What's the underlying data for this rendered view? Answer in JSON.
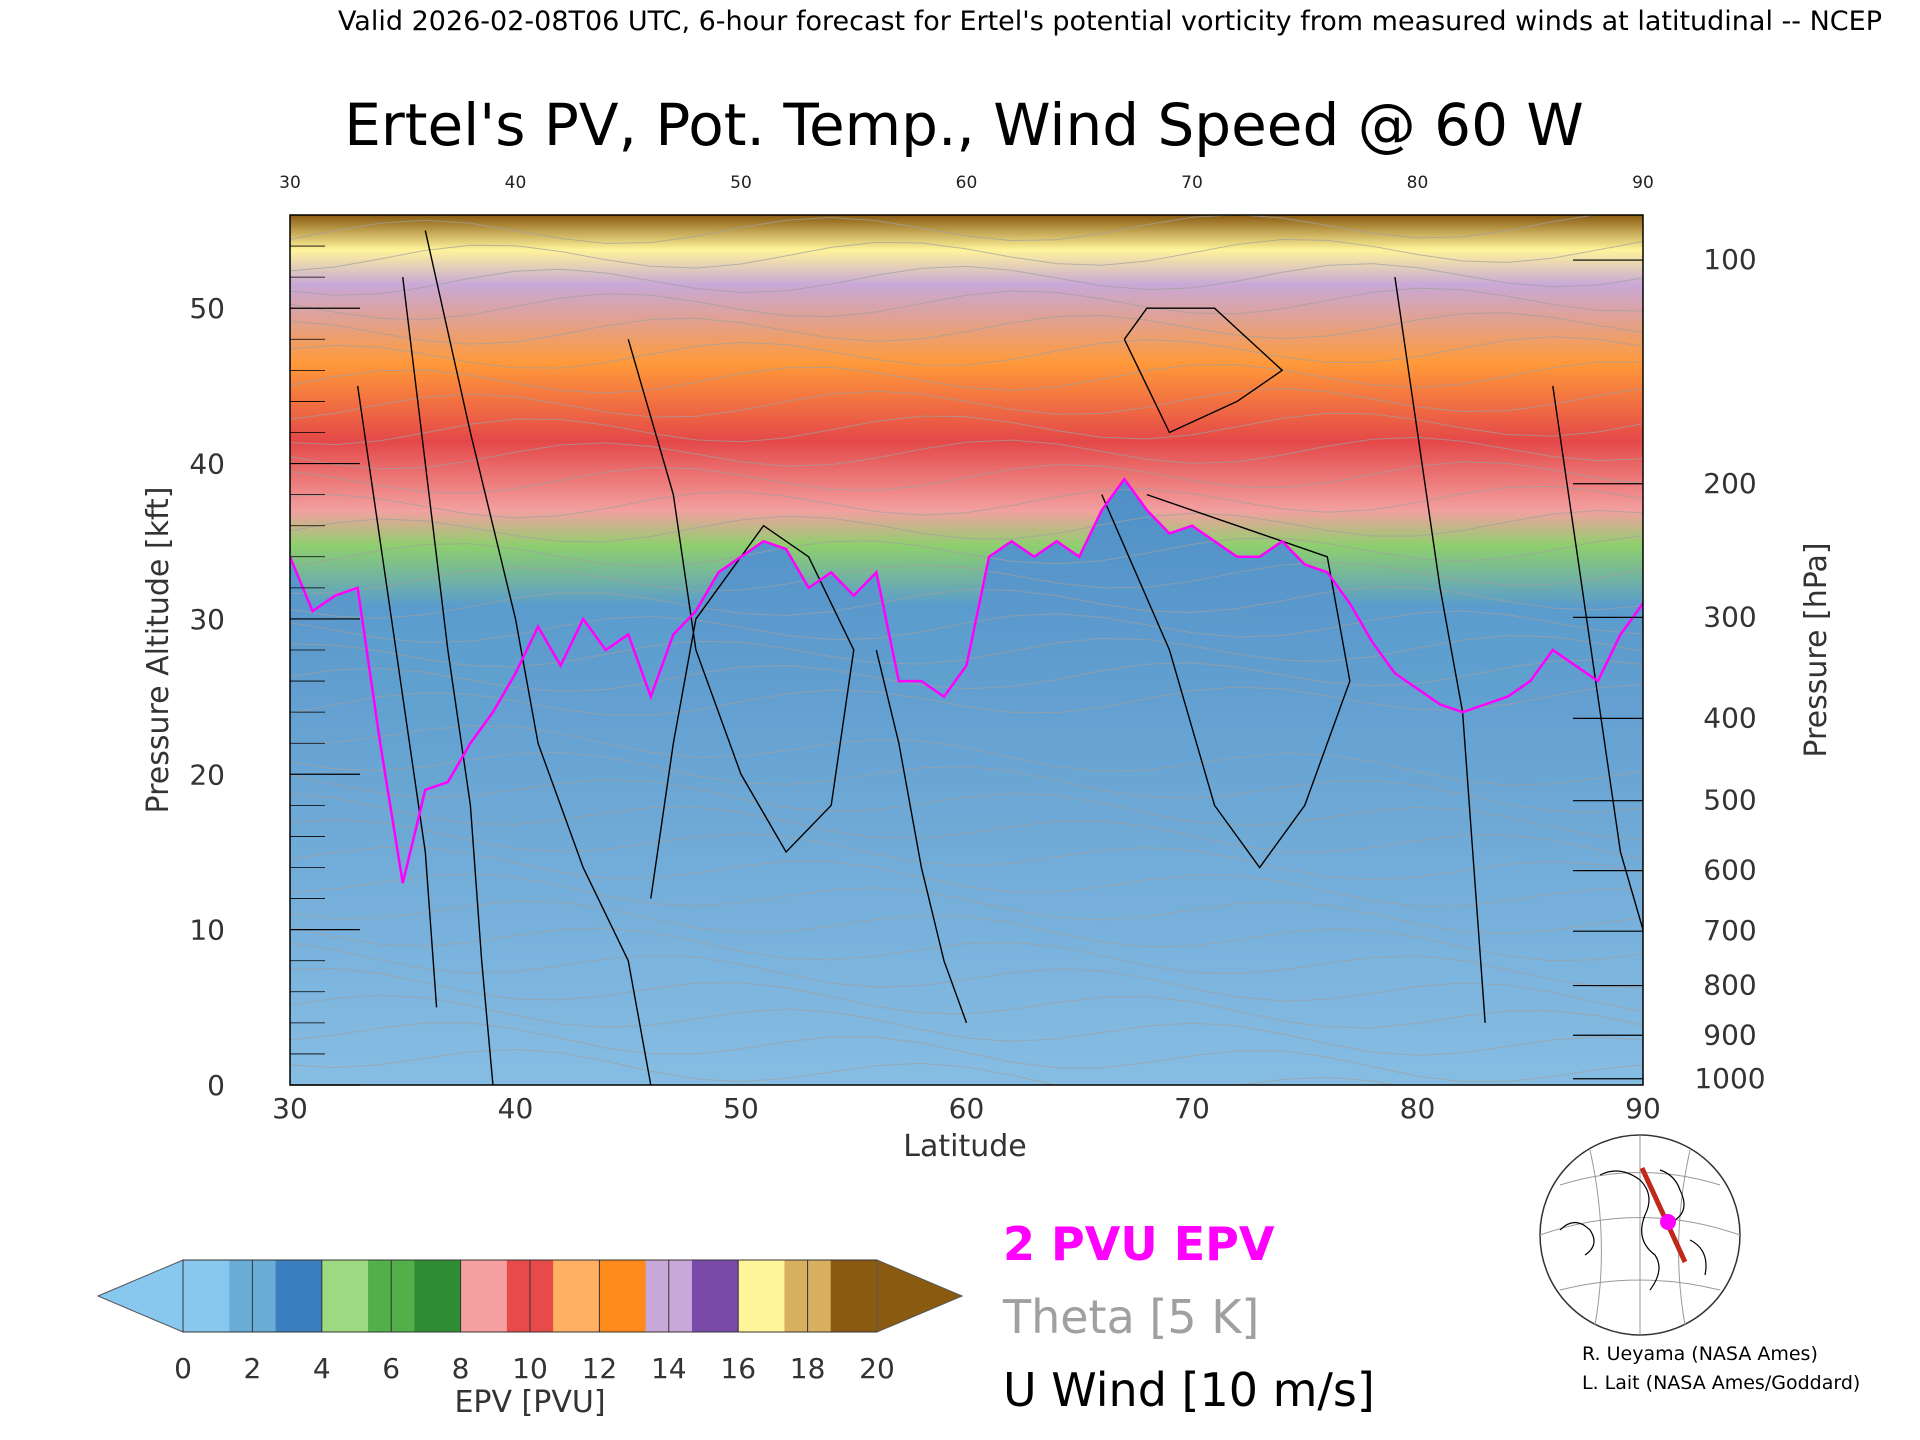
{
  "header": {
    "valid_line": "Valid 2026-02-08T06 UTC, 6-hour forecast for Ertel's potential vorticity from measured winds at latitudinal -- NCEP"
  },
  "chart_data": {
    "type": "heatmap",
    "title": "Ertel's PV, Pot. Temp., Wind Speed @ 60 W",
    "xlabel": "Latitude",
    "ylabel": "Pressure Altitude [kft]",
    "y2label": "Pressure [hPa]",
    "xlim": [
      30,
      90
    ],
    "ylim": [
      0,
      56
    ],
    "x_ticks": [
      "30",
      "40",
      "50",
      "60",
      "70",
      "80",
      "90"
    ],
    "y_ticks": [
      "0",
      "10",
      "20",
      "30",
      "40",
      "50"
    ],
    "pressure_ticks": [
      {
        "label": "100",
        "kft": 53.1
      },
      {
        "label": "200",
        "kft": 38.7
      },
      {
        "label": "300",
        "kft": 30.1
      },
      {
        "label": "400",
        "kft": 23.6
      },
      {
        "label": "500",
        "kft": 18.3
      },
      {
        "label": "600",
        "kft": 13.8
      },
      {
        "label": "700",
        "kft": 9.9
      },
      {
        "label": "800",
        "kft": 6.4
      },
      {
        "label": "900",
        "kft": 3.2
      },
      {
        "label": "1000",
        "kft": 0.4
      }
    ],
    "tropopause_2pvu_kft": [
      [
        30,
        34
      ],
      [
        31,
        30.5
      ],
      [
        32,
        31.5
      ],
      [
        33,
        32
      ],
      [
        34,
        22
      ],
      [
        35,
        13
      ],
      [
        36,
        19
      ],
      [
        37,
        19.5
      ],
      [
        38,
        22
      ],
      [
        39,
        24
      ],
      [
        40,
        26.5
      ],
      [
        41,
        29.5
      ],
      [
        42,
        27
      ],
      [
        43,
        30
      ],
      [
        44,
        28
      ],
      [
        45,
        29
      ],
      [
        46,
        25
      ],
      [
        47,
        29
      ],
      [
        48,
        30.5
      ],
      [
        49,
        33
      ],
      [
        50,
        34
      ],
      [
        51,
        35
      ],
      [
        52,
        34.5
      ],
      [
        53,
        32
      ],
      [
        54,
        33
      ],
      [
        55,
        31.5
      ],
      [
        56,
        33
      ],
      [
        57,
        26
      ],
      [
        58,
        26
      ],
      [
        59,
        25
      ],
      [
        60,
        27
      ],
      [
        61,
        34
      ],
      [
        62,
        35
      ],
      [
        63,
        34
      ],
      [
        64,
        35
      ],
      [
        65,
        34
      ],
      [
        66,
        37
      ],
      [
        67,
        39
      ],
      [
        68,
        37
      ],
      [
        69,
        35.5
      ],
      [
        70,
        36
      ],
      [
        71,
        35
      ],
      [
        72,
        34
      ],
      [
        73,
        34
      ],
      [
        74,
        35
      ],
      [
        75,
        33.5
      ],
      [
        76,
        33
      ],
      [
        77,
        31
      ],
      [
        78,
        28.5
      ],
      [
        79,
        26.5
      ],
      [
        80,
        25.5
      ],
      [
        81,
        24.5
      ],
      [
        82,
        24
      ],
      [
        83,
        24.5
      ],
      [
        84,
        25
      ],
      [
        85,
        26
      ],
      [
        86,
        28
      ],
      [
        87,
        27
      ],
      [
        88,
        26
      ],
      [
        89,
        29
      ],
      [
        90,
        31
      ]
    ],
    "colorbar": {
      "label": "EPV [PVU]",
      "ticks": [
        "0",
        "2",
        "4",
        "6",
        "8",
        "10",
        "12",
        "14",
        "16",
        "18",
        "20"
      ],
      "colors": [
        "#88c8ee",
        "#6aaed8",
        "#3a7fbf",
        "#9ed880",
        "#52b04a",
        "#2e8c34",
        "#f4a0a0",
        "#e84a4a",
        "#ffb060",
        "#ff8a1c",
        "#c8a8d8",
        "#7a4aa8",
        "#fff49a",
        "#d8b060",
        "#8a5a10"
      ],
      "under_color": "#88c8ee",
      "over_color": "#8a5a10"
    }
  },
  "legend": {
    "pv_line": "2 PVU EPV",
    "theta_line": "Theta [5 K]",
    "wind_line": "U Wind [10 m/s]",
    "pv_color": "#ff00ff",
    "theta_color": "#a0a0a0",
    "wind_color": "#000000"
  },
  "credits": {
    "line1": "R. Ueyama (NASA Ames)",
    "line2": "L. Lait (NASA Ames/Goddard)"
  }
}
